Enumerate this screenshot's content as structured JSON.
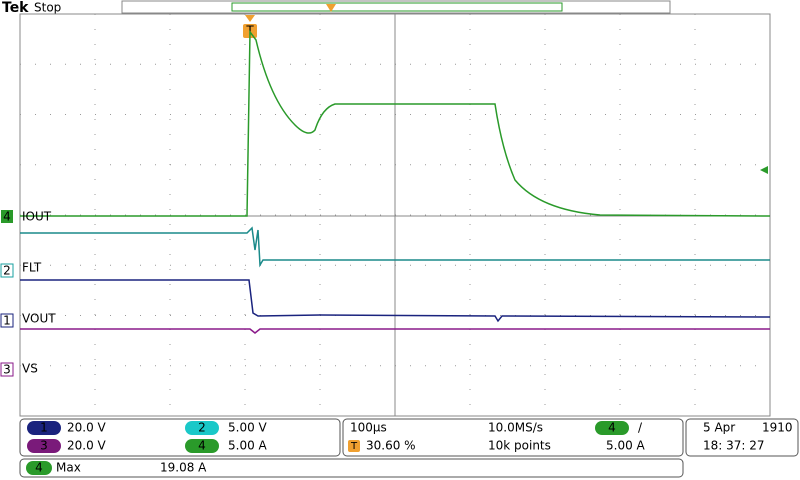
{
  "header": {
    "brand": "Tek",
    "status": "Stop",
    "trigger_marker": "T"
  },
  "channels": [
    {
      "number": "4",
      "label": "IOUT"
    },
    {
      "number": "2",
      "label": "FLT"
    },
    {
      "number": "1",
      "label": "VOUT"
    },
    {
      "number": "3",
      "label": "VS"
    }
  ],
  "readout": {
    "ch1": {
      "number": "1",
      "scale": "20.0 V"
    },
    "ch2": {
      "number": "2",
      "scale": "5.00 V"
    },
    "ch3": {
      "number": "3",
      "scale": "20.0 V"
    },
    "ch4": {
      "number": "4",
      "scale": "5.00 A"
    },
    "timebase": "100µs",
    "sample_rate": "10.0MS/s",
    "trigger_icon": "T",
    "trigger_position": "30.60 %",
    "record_length": "10k points",
    "trigger_source": "4",
    "trigger_slope": "/",
    "trigger_level": "5.00 A",
    "date": "5 Apr",
    "year": "1910",
    "time": "18: 37: 27",
    "measurement": {
      "source": "4",
      "type": "Max",
      "value": "19.08 A"
    }
  }
}
